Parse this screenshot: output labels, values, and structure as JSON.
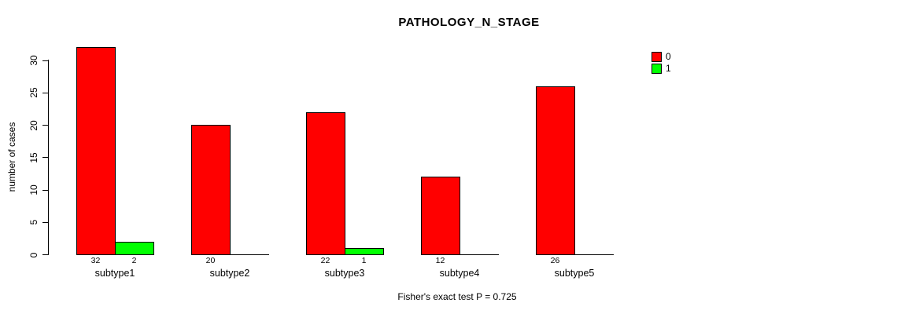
{
  "title": "PATHOLOGY_N_STAGE",
  "footnote": "Fisher's exact test P = 0.725",
  "y_axis": {
    "label": "number of cases",
    "ticks": [
      0,
      5,
      10,
      15,
      20,
      25,
      30
    ]
  },
  "legend": {
    "position": "top-right",
    "items": [
      {
        "label": "0",
        "color": "#FF0000"
      },
      {
        "label": "1",
        "color": "#00FF00"
      }
    ]
  },
  "chart_data": {
    "type": "bar",
    "title": "PATHOLOGY_N_STAGE",
    "xlabel": "",
    "ylabel": "number of cases",
    "categories": [
      "subtype1",
      "subtype2",
      "subtype3",
      "subtype4",
      "subtype5"
    ],
    "series": [
      {
        "name": "0",
        "color": "#FF0000",
        "values": [
          32,
          20,
          22,
          12,
          26
        ]
      },
      {
        "name": "1",
        "color": "#00FF00",
        "values": [
          2,
          0,
          1,
          0,
          0
        ]
      }
    ],
    "bar_value_labels": [
      [
        "32",
        "2"
      ],
      [
        "20",
        ""
      ],
      [
        "22",
        "1"
      ],
      [
        "12",
        ""
      ],
      [
        "26",
        ""
      ]
    ],
    "ylim": [
      0,
      32
    ],
    "yticks": [
      0,
      5,
      10,
      15,
      20,
      25,
      30
    ],
    "grid": false,
    "legend_position": "top-right",
    "annotation": "Fisher's exact test P = 0.725"
  }
}
